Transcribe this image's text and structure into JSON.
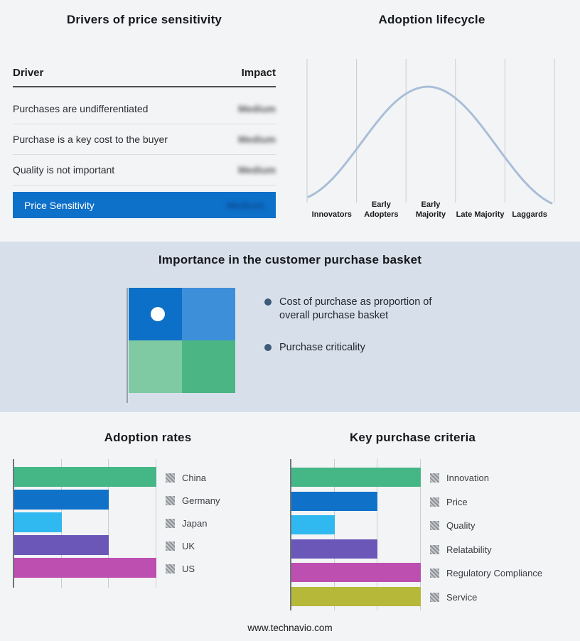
{
  "drivers": {
    "title": "Drivers of price sensitivity",
    "columns": [
      "Driver",
      "Impact"
    ],
    "rows": [
      {
        "driver": "Purchases are undifferentiated",
        "impact": "Medium"
      },
      {
        "driver": "Purchase is a key cost to the buyer",
        "impact": "Medium"
      },
      {
        "driver": "Quality is not important",
        "impact": "Medium"
      }
    ],
    "summary": {
      "label": "Price Sensitivity",
      "impact": "Medium"
    },
    "accent_color": "#0d70c9"
  },
  "lifecycle": {
    "title": "Adoption lifecycle",
    "stages": [
      "Innovators",
      "Early Adopters",
      "Early Majority",
      "Late Majority",
      "Laggards"
    ],
    "curve_color": "#a9bed8"
  },
  "basket": {
    "title": "Importance in the customer purchase basket",
    "bullets": [
      "Cost of purchase as proportion of overall purchase basket",
      "Purchase criticality"
    ],
    "quadrant_colors": [
      "#0c70c8",
      "#3e8fd9",
      "#7fc9a3",
      "#4bb583"
    ],
    "band_color": "#d7e0ea"
  },
  "chart_data": [
    {
      "type": "bar",
      "title": "Adoption rates",
      "orientation": "horizontal",
      "categories": [
        "China",
        "Germany",
        "Japan",
        "UK",
        "US"
      ],
      "values": [
        3,
        2,
        1,
        2,
        3
      ],
      "colors": [
        "#45b787",
        "#0f72c8",
        "#30b8f0",
        "#6a57b8",
        "#bd4fb0"
      ],
      "xlim": [
        0,
        3
      ],
      "x_tick_labels": [],
      "grid": true,
      "legend_position": "right"
    },
    {
      "type": "bar",
      "title": "Key purchase criteria",
      "orientation": "horizontal",
      "categories": [
        "Innovation",
        "Price",
        "Quality",
        "Relatability",
        "Regulatory Compliance",
        "Service"
      ],
      "values": [
        3,
        2,
        1,
        2,
        3,
        3
      ],
      "colors": [
        "#45b787",
        "#0f72c8",
        "#30b8f0",
        "#6a57b8",
        "#bd4fb0",
        "#b6b83a"
      ],
      "xlim": [
        0,
        3
      ],
      "x_tick_labels": [],
      "grid": true,
      "legend_position": "right"
    }
  ],
  "footer": {
    "url": "www.technavio.com"
  }
}
